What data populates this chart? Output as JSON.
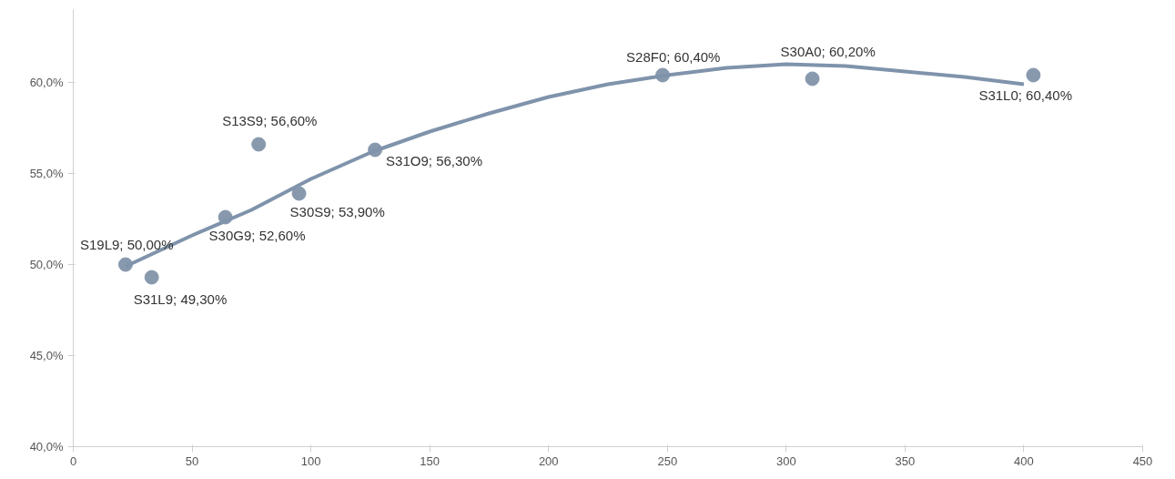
{
  "chart_data": {
    "type": "scatter",
    "marker": "circle",
    "grid": false,
    "xlim": [
      0,
      450
    ],
    "xticks": [
      0,
      50,
      100,
      150,
      200,
      250,
      300,
      350,
      400,
      450
    ],
    "ylim": [
      40,
      64
    ],
    "yticks": [
      {
        "value": 40,
        "label": "40,0%"
      },
      {
        "value": 45,
        "label": "45,0%"
      },
      {
        "value": 50,
        "label": "50,0%"
      },
      {
        "value": 55,
        "label": "55,0%"
      },
      {
        "value": 60,
        "label": "60,0%"
      }
    ],
    "series": [
      {
        "color": "#8899ae",
        "x": [
          22,
          33,
          64,
          78,
          95,
          127,
          248,
          311,
          404
        ],
        "values": [
          50.0,
          49.3,
          52.6,
          56.6,
          53.9,
          56.3,
          60.4,
          60.2,
          60.4
        ]
      },
      {
        "type": "line",
        "marker": "none",
        "color": "#7f93ab",
        "x": [
          22,
          50,
          75,
          100,
          126,
          150,
          175,
          200,
          225,
          250,
          275,
          300,
          325,
          350,
          375,
          400
        ],
        "values": [
          49.9,
          51.6,
          53.0,
          54.7,
          56.2,
          57.3,
          58.3,
          59.2,
          59.9,
          60.4,
          60.8,
          61.0,
          60.9,
          60.6,
          60.3,
          59.9
        ]
      }
    ],
    "annotations": [
      {
        "text": "S19L9; 50,00%",
        "x": 22,
        "y": 50.0
      },
      {
        "text": "S31L9; 49,30%",
        "x": 33,
        "y": 49.3
      },
      {
        "text": "S30G9; 52,60%",
        "x": 64,
        "y": 52.6
      },
      {
        "text": "S13S9; 56,60%",
        "x": 78,
        "y": 56.6
      },
      {
        "text": "S30S9; 53,90%",
        "x": 95,
        "y": 53.9
      },
      {
        "text": "S31O9; 56,30%",
        "x": 127,
        "y": 56.3
      },
      {
        "text": "S28F0; 60,40%",
        "x": 248,
        "y": 60.4
      },
      {
        "text": "S30A0; 60,20%",
        "x": 311,
        "y": 60.2
      },
      {
        "text": "S31L0; 60,40%",
        "x": 404,
        "y": 60.4
      }
    ]
  }
}
